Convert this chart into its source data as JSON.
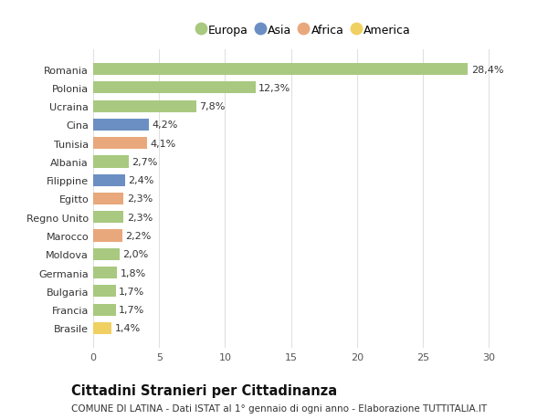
{
  "categories": [
    "Brasile",
    "Francia",
    "Bulgaria",
    "Germania",
    "Moldova",
    "Marocco",
    "Regno Unito",
    "Egitto",
    "Filippine",
    "Albania",
    "Tunisia",
    "Cina",
    "Ucraina",
    "Polonia",
    "Romania"
  ],
  "values": [
    1.4,
    1.7,
    1.7,
    1.8,
    2.0,
    2.2,
    2.3,
    2.3,
    2.4,
    2.7,
    4.1,
    4.2,
    7.8,
    12.3,
    28.4
  ],
  "labels": [
    "1,4%",
    "1,7%",
    "1,7%",
    "1,8%",
    "2,0%",
    "2,2%",
    "2,3%",
    "2,3%",
    "2,4%",
    "2,7%",
    "4,1%",
    "4,2%",
    "7,8%",
    "12,3%",
    "28,4%"
  ],
  "continents": [
    "America",
    "Europa",
    "Europa",
    "Europa",
    "Europa",
    "Africa",
    "Europa",
    "Africa",
    "Asia",
    "Europa",
    "Africa",
    "Asia",
    "Europa",
    "Europa",
    "Europa"
  ],
  "colors": {
    "Europa": "#a8c97f",
    "Asia": "#6b8fc2",
    "Africa": "#e8a87c",
    "America": "#f0d060"
  },
  "legend_order": [
    "Europa",
    "Asia",
    "Africa",
    "America"
  ],
  "title": "Cittadini Stranieri per Cittadinanza",
  "subtitle": "COMUNE DI LATINA - Dati ISTAT al 1° gennaio di ogni anno - Elaborazione TUTTITALIA.IT",
  "xlim": [
    0,
    32
  ],
  "xticks": [
    0,
    5,
    10,
    15,
    20,
    25,
    30
  ],
  "background_color": "#ffffff",
  "plot_bg_color": "#ffffff",
  "bar_height": 0.65,
  "label_fontsize": 8,
  "title_fontsize": 10.5,
  "subtitle_fontsize": 7.5,
  "legend_fontsize": 9,
  "tick_fontsize": 8,
  "grid_color": "#e0e0e0"
}
